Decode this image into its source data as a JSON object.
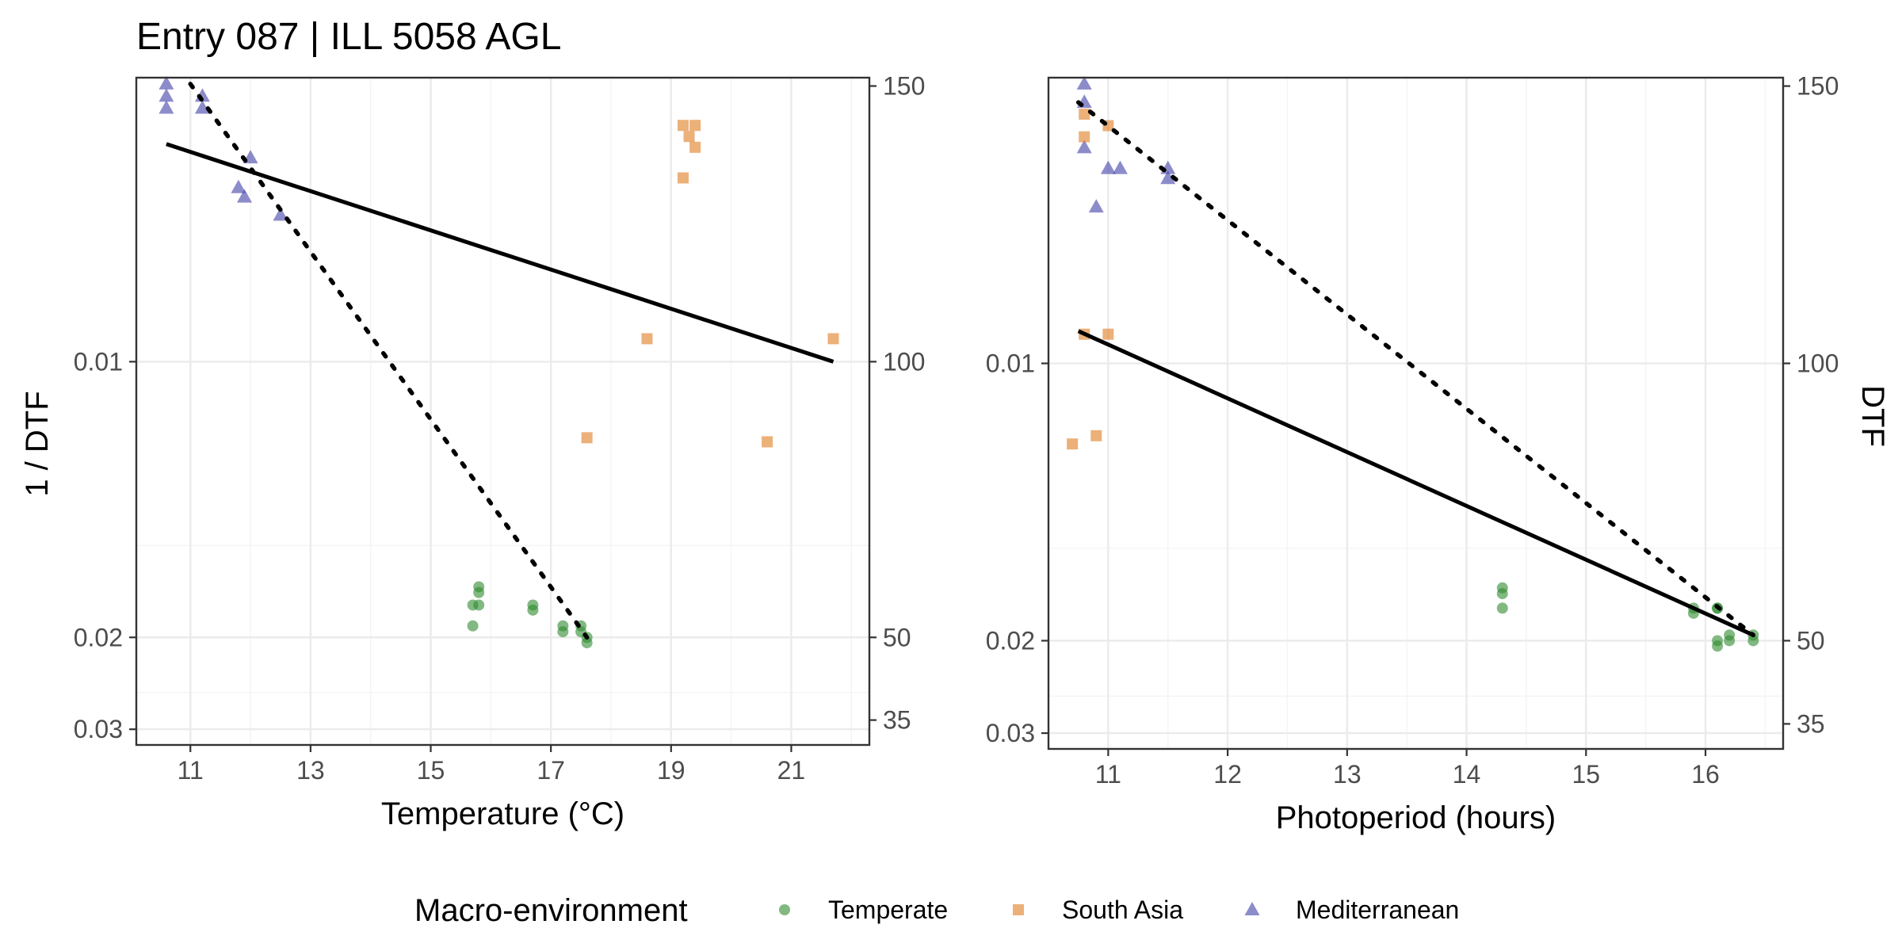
{
  "colors": {
    "Temperate": "#2e8b2e",
    "South Asia": "#e07b1f",
    "Mediterranean": "#3f3fa8",
    "fit": "#000000"
  },
  "chart_data": {
    "title": "Entry 087 | ILL 5058 AGL",
    "ylabel_left": "1 / DTF",
    "ylabel_right": "DTF",
    "legend": {
      "title": "Macro-environment",
      "entries": [
        {
          "name": "Temperate",
          "shape": "circle"
        },
        {
          "name": "South Asia",
          "shape": "square"
        },
        {
          "name": "Mediterranean",
          "shape": "triangle"
        }
      ],
      "position": "bottom"
    },
    "y": {
      "scale": "reversed",
      "range": [
        0.0066,
        0.0328
      ],
      "ticks": [
        0.01,
        0.02,
        0.03
      ],
      "tick_labels": [
        "0.01",
        "0.02",
        "0.03"
      ],
      "minor": [
        0.015,
        0.025
      ],
      "secondary_ticks": [
        150,
        100,
        50,
        35
      ],
      "secondary_tick_labels": [
        "150",
        "100",
        "50",
        "35"
      ]
    },
    "panels": [
      {
        "type": "scatter",
        "xlabel": "Temperature (°C)",
        "xlim": [
          10.1,
          22.3
        ],
        "xticks": [
          11,
          13,
          15,
          17,
          19,
          21
        ],
        "xtick_labels": [
          "11",
          "13",
          "15",
          "17",
          "19",
          "21"
        ],
        "xminor": [
          12,
          14,
          16,
          18,
          20,
          22
        ],
        "fits": [
          {
            "style": "solid",
            "x": [
              10.6,
              21.7
            ],
            "y": [
              0.00717,
              0.01
            ]
          },
          {
            "style": "dotted",
            "x": [
              11.0,
              17.6
            ],
            "y": [
              0.00665,
              0.02
            ]
          }
        ],
        "series": [
          {
            "name": "Mediterranean",
            "points": [
              [
                10.6,
                0.00665
              ],
              [
                10.6,
                0.00685
              ],
              [
                11.2,
                0.00675
              ],
              [
                11.2,
                0.00685
              ],
              [
                11.8,
                0.0076
              ],
              [
                11.9,
                0.0077
              ],
              [
                12.0,
                0.0073
              ],
              [
                12.5,
                0.0079
              ],
              [
                10.6,
                0.00675
              ]
            ]
          },
          {
            "name": "South Asia",
            "points": [
              [
                19.2,
                0.007
              ],
              [
                19.2,
                0.0075
              ],
              [
                19.4,
                0.007
              ],
              [
                19.4,
                0.0072
              ],
              [
                18.6,
                0.0096
              ],
              [
                17.6,
                0.0116
              ],
              [
                20.6,
                0.0117
              ],
              [
                21.7,
                0.0096
              ],
              [
                19.3,
                0.0071
              ]
            ]
          },
          {
            "name": "Temperate",
            "points": [
              [
                15.7,
                0.0179
              ],
              [
                15.8,
                0.0179
              ],
              [
                15.8,
                0.0172
              ],
              [
                15.8,
                0.0169
              ],
              [
                15.7,
                0.0192
              ],
              [
                16.7,
                0.0179
              ],
              [
                16.7,
                0.0182
              ],
              [
                17.2,
                0.0192
              ],
              [
                17.2,
                0.0196
              ],
              [
                17.5,
                0.0192
              ],
              [
                17.5,
                0.0196
              ],
              [
                17.6,
                0.02
              ],
              [
                17.6,
                0.0204
              ]
            ]
          }
        ]
      },
      {
        "type": "scatter",
        "xlabel": "Photoperiod (hours)",
        "xlim": [
          10.5,
          16.65
        ],
        "xticks": [
          11,
          12,
          13,
          14,
          15,
          16
        ],
        "xtick_labels": [
          "11",
          "12",
          "13",
          "14",
          "15",
          "16"
        ],
        "xminor": [
          11.5,
          12.5,
          13.5,
          14.5,
          15.5,
          16.5
        ],
        "fits": [
          {
            "style": "solid",
            "x": [
              10.75,
              16.4
            ],
            "y": [
              0.00945,
              0.0196
            ]
          },
          {
            "style": "dotted",
            "x": [
              10.75,
              16.4
            ],
            "y": [
              0.0068,
              0.0196
            ]
          }
        ],
        "series": [
          {
            "name": "Mediterranean",
            "points": [
              [
                10.8,
                0.00665
              ],
              [
                10.8,
                0.0068
              ],
              [
                10.8,
                0.0072
              ],
              [
                10.9,
                0.0078
              ],
              [
                11.0,
                0.0074
              ],
              [
                11.1,
                0.0074
              ],
              [
                11.5,
                0.0074
              ],
              [
                11.5,
                0.0075
              ]
            ]
          },
          {
            "name": "South Asia",
            "points": [
              [
                10.7,
                0.0117
              ],
              [
                10.8,
                0.0095
              ],
              [
                10.8,
                0.0071
              ],
              [
                10.9,
                0.0115
              ],
              [
                11.0,
                0.0095
              ],
              [
                11.0,
                0.007
              ],
              [
                10.8,
                0.0069
              ]
            ]
          },
          {
            "name": "Temperate",
            "points": [
              [
                14.3,
                0.0168
              ],
              [
                14.3,
                0.0171
              ],
              [
                14.3,
                0.0179
              ],
              [
                15.9,
                0.0179
              ],
              [
                15.9,
                0.0182
              ],
              [
                16.1,
                0.0179
              ],
              [
                16.1,
                0.0179
              ],
              [
                16.1,
                0.02
              ],
              [
                16.1,
                0.0204
              ],
              [
                16.2,
                0.0196
              ],
              [
                16.2,
                0.02
              ],
              [
                16.4,
                0.0196
              ],
              [
                16.4,
                0.02
              ]
            ]
          }
        ]
      }
    ]
  }
}
